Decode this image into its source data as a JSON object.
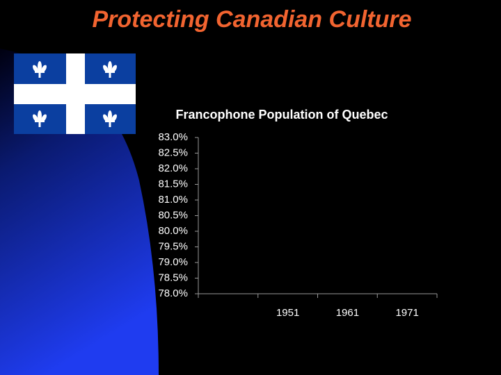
{
  "slide_title": "Protecting Canadian Culture",
  "chart_data": {
    "type": "bar",
    "title": "Francophone Population of Quebec",
    "categories": [
      null,
      "1951",
      "1961",
      "1971"
    ],
    "ylim": [
      78,
      83
    ],
    "yticks": [
      {
        "value": 78,
        "label": "78.0%"
      },
      {
        "value": 78.5,
        "label": "78.5%"
      },
      {
        "value": 79,
        "label": "79.0%"
      },
      {
        "value": 79.5,
        "label": "79.5%"
      },
      {
        "value": 80,
        "label": "80.0%"
      },
      {
        "value": 80.5,
        "label": "80.5%"
      },
      {
        "value": 81,
        "label": "81.0%"
      },
      {
        "value": 81.5,
        "label": "81.5%"
      },
      {
        "value": 82,
        "label": "82.0%"
      },
      {
        "value": 82.5,
        "label": "82.5%"
      },
      {
        "value": 83,
        "label": "83.0%"
      }
    ]
  }
}
